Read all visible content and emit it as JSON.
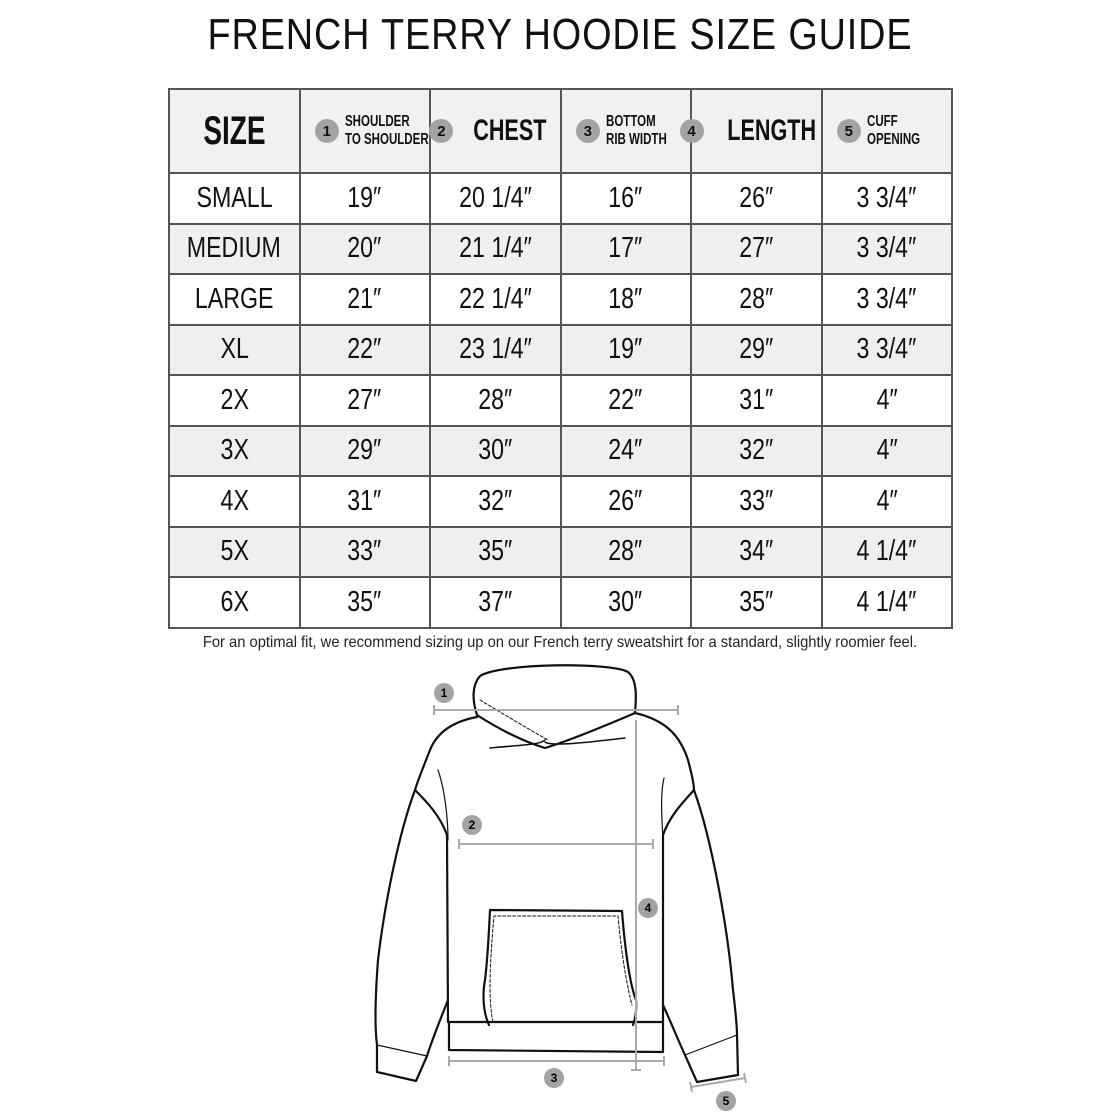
{
  "title": "FRENCH TERRY HOODIE SIZE GUIDE",
  "table": {
    "size_header": "SIZE",
    "columns": [
      {
        "num": "1",
        "lines": [
          "SHOULDER",
          "TO SHOULDER"
        ]
      },
      {
        "num": "2",
        "label": "CHEST"
      },
      {
        "num": "3",
        "lines": [
          "BOTTOM",
          "RIB WIDTH"
        ]
      },
      {
        "num": "4",
        "label": "LENGTH"
      },
      {
        "num": "5",
        "lines": [
          "CUFF",
          "OPENING"
        ]
      }
    ],
    "rows": [
      [
        "SMALL",
        "19″",
        "20 1/4″",
        "16″",
        "26″",
        "3 3/4″"
      ],
      [
        "MEDIUM",
        "20″",
        "21 1/4″",
        "17″",
        "27″",
        "3 3/4″"
      ],
      [
        "LARGE",
        "21″",
        "22 1/4″",
        "18″",
        "28″",
        "3 3/4″"
      ],
      [
        "XL",
        "22″",
        "23 1/4″",
        "19″",
        "29″",
        "3 3/4″"
      ],
      [
        "2X",
        "27″",
        "28″",
        "22″",
        "31″",
        "4″"
      ],
      [
        "3X",
        "29″",
        "30″",
        "24″",
        "32″",
        "4″"
      ],
      [
        "4X",
        "31″",
        "32″",
        "26″",
        "33″",
        "4″"
      ],
      [
        "5X",
        "33″",
        "35″",
        "28″",
        "34″",
        "4 1/4″"
      ],
      [
        "6X",
        "35″",
        "37″",
        "30″",
        "35″",
        "4 1/4″"
      ]
    ]
  },
  "note": "For an optimal fit, we recommend sizing up on our French terry sweatshirt for a standard, slightly roomier feel.",
  "diagram": {
    "markers": [
      "1",
      "2",
      "3",
      "4",
      "5"
    ]
  },
  "colors": {
    "header_bg": "#f1f1f1",
    "alt_row_bg": "#efefef",
    "marker": "#a3a3a3",
    "measure_line": "#aaaaaa"
  }
}
